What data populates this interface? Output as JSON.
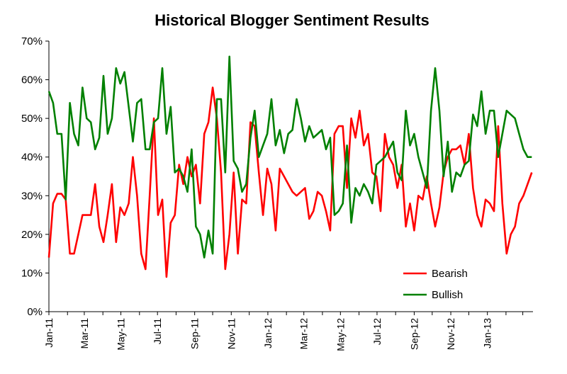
{
  "chart_data": {
    "type": "line",
    "title": "Historical Blogger Sentiment Results",
    "xlabel": "",
    "ylabel": "",
    "ylim": [
      0,
      70
    ],
    "y_ticks": [
      "0%",
      "10%",
      "20%",
      "30%",
      "40%",
      "50%",
      "60%",
      "70%"
    ],
    "x_tick_labels": [
      "Jan-11",
      "Mar-11",
      "May-11",
      "Jul-11",
      "Sep-11",
      "Nov-11",
      "Jan-12",
      "Mar-12",
      "May-12",
      "Jul-12",
      "Sep-12",
      "Nov-12",
      "Jan-13"
    ],
    "x_range": [
      "2011-01-01",
      "2013-03-18"
    ],
    "grid": false,
    "legend_position": "bottom-right",
    "series": [
      {
        "name": "Bearish",
        "color": "#ff0000",
        "points": [
          [
            "2011-01-01",
            14
          ],
          [
            "2011-01-08",
            28
          ],
          [
            "2011-01-15",
            30.5
          ],
          [
            "2011-01-22",
            30.5
          ],
          [
            "2011-01-29",
            29
          ],
          [
            "2011-02-05",
            15
          ],
          [
            "2011-02-12",
            15
          ],
          [
            "2011-02-19",
            20
          ],
          [
            "2011-02-26",
            25
          ],
          [
            "2011-03-05",
            25
          ],
          [
            "2011-03-12",
            25
          ],
          [
            "2011-03-19",
            33
          ],
          [
            "2011-03-26",
            22
          ],
          [
            "2011-04-02",
            18
          ],
          [
            "2011-04-09",
            25
          ],
          [
            "2011-04-16",
            33
          ],
          [
            "2011-04-23",
            18
          ],
          [
            "2011-04-30",
            27
          ],
          [
            "2011-05-07",
            25
          ],
          [
            "2011-05-14",
            28
          ],
          [
            "2011-05-21",
            40
          ],
          [
            "2011-05-28",
            30
          ],
          [
            "2011-06-04",
            15
          ],
          [
            "2011-06-11",
            11
          ],
          [
            "2011-06-18",
            30
          ],
          [
            "2011-06-25",
            50
          ],
          [
            "2011-07-02",
            25
          ],
          [
            "2011-07-09",
            29
          ],
          [
            "2011-07-16",
            9
          ],
          [
            "2011-07-23",
            23
          ],
          [
            "2011-07-30",
            25
          ],
          [
            "2011-08-06",
            38
          ],
          [
            "2011-08-13",
            33
          ],
          [
            "2011-08-20",
            40
          ],
          [
            "2011-08-27",
            35
          ],
          [
            "2011-09-03",
            38
          ],
          [
            "2011-09-10",
            28
          ],
          [
            "2011-09-17",
            46
          ],
          [
            "2011-09-24",
            49
          ],
          [
            "2011-10-01",
            58
          ],
          [
            "2011-10-08",
            50
          ],
          [
            "2011-10-15",
            36
          ],
          [
            "2011-10-22",
            11
          ],
          [
            "2011-10-29",
            20
          ],
          [
            "2011-11-05",
            36
          ],
          [
            "2011-11-12",
            15
          ],
          [
            "2011-11-19",
            29
          ],
          [
            "2011-11-26",
            28
          ],
          [
            "2011-12-03",
            49
          ],
          [
            "2011-12-10",
            48
          ],
          [
            "2011-12-17",
            36
          ],
          [
            "2011-12-24",
            25
          ],
          [
            "2011-12-31",
            37
          ],
          [
            "2012-01-07",
            33
          ],
          [
            "2012-01-14",
            21
          ],
          [
            "2012-01-21",
            37
          ],
          [
            "2012-01-28",
            35
          ],
          [
            "2012-02-04",
            33
          ],
          [
            "2012-02-11",
            31
          ],
          [
            "2012-02-18",
            30
          ],
          [
            "2012-02-25",
            31
          ],
          [
            "2012-03-03",
            32
          ],
          [
            "2012-03-10",
            24
          ],
          [
            "2012-03-17",
            26
          ],
          [
            "2012-03-24",
            31
          ],
          [
            "2012-03-31",
            30
          ],
          [
            "2012-04-07",
            26
          ],
          [
            "2012-04-14",
            21
          ],
          [
            "2012-04-21",
            46
          ],
          [
            "2012-04-28",
            48
          ],
          [
            "2012-05-05",
            48
          ],
          [
            "2012-05-12",
            32
          ],
          [
            "2012-05-19",
            50
          ],
          [
            "2012-05-26",
            45
          ],
          [
            "2012-06-02",
            52
          ],
          [
            "2012-06-09",
            43
          ],
          [
            "2012-06-16",
            46
          ],
          [
            "2012-06-23",
            36
          ],
          [
            "2012-06-30",
            35
          ],
          [
            "2012-07-07",
            26
          ],
          [
            "2012-07-14",
            46
          ],
          [
            "2012-07-21",
            40
          ],
          [
            "2012-07-28",
            38
          ],
          [
            "2012-08-04",
            32
          ],
          [
            "2012-08-11",
            38
          ],
          [
            "2012-08-18",
            22
          ],
          [
            "2012-08-25",
            28
          ],
          [
            "2012-09-01",
            21
          ],
          [
            "2012-09-08",
            30
          ],
          [
            "2012-09-15",
            29
          ],
          [
            "2012-09-22",
            35
          ],
          [
            "2012-09-29",
            28
          ],
          [
            "2012-10-06",
            22
          ],
          [
            "2012-10-13",
            27
          ],
          [
            "2012-10-20",
            36
          ],
          [
            "2012-10-27",
            40
          ],
          [
            "2012-11-03",
            42
          ],
          [
            "2012-11-10",
            42
          ],
          [
            "2012-11-17",
            43
          ],
          [
            "2012-11-24",
            38
          ],
          [
            "2012-12-01",
            46
          ],
          [
            "2012-12-08",
            32
          ],
          [
            "2012-12-15",
            25
          ],
          [
            "2012-12-22",
            22
          ],
          [
            "2012-12-29",
            29
          ],
          [
            "2013-01-05",
            28
          ],
          [
            "2013-01-12",
            26
          ],
          [
            "2013-01-19",
            48
          ],
          [
            "2013-01-26",
            28
          ],
          [
            "2013-02-02",
            15
          ],
          [
            "2013-02-09",
            20
          ],
          [
            "2013-02-16",
            22
          ],
          [
            "2013-02-23",
            28
          ],
          [
            "2013-03-02",
            30
          ],
          [
            "2013-03-09",
            33
          ],
          [
            "2013-03-16",
            36
          ]
        ]
      },
      {
        "name": "Bullish",
        "color": "#008000",
        "points": [
          [
            "2011-01-01",
            57
          ],
          [
            "2011-01-08",
            54
          ],
          [
            "2011-01-15",
            46
          ],
          [
            "2011-01-22",
            46
          ],
          [
            "2011-01-29",
            29
          ],
          [
            "2011-02-05",
            54
          ],
          [
            "2011-02-12",
            46
          ],
          [
            "2011-02-19",
            43
          ],
          [
            "2011-02-26",
            58
          ],
          [
            "2011-03-05",
            50
          ],
          [
            "2011-03-12",
            49
          ],
          [
            "2011-03-19",
            42
          ],
          [
            "2011-03-26",
            45
          ],
          [
            "2011-04-02",
            61
          ],
          [
            "2011-04-09",
            46
          ],
          [
            "2011-04-16",
            50
          ],
          [
            "2011-04-23",
            63
          ],
          [
            "2011-04-30",
            59
          ],
          [
            "2011-05-07",
            62
          ],
          [
            "2011-05-14",
            53
          ],
          [
            "2011-05-21",
            44
          ],
          [
            "2011-05-28",
            54
          ],
          [
            "2011-06-04",
            55
          ],
          [
            "2011-06-11",
            42
          ],
          [
            "2011-06-18",
            42
          ],
          [
            "2011-06-25",
            49
          ],
          [
            "2011-07-02",
            50
          ],
          [
            "2011-07-09",
            63
          ],
          [
            "2011-07-16",
            46
          ],
          [
            "2011-07-23",
            53
          ],
          [
            "2011-07-30",
            36
          ],
          [
            "2011-08-06",
            37
          ],
          [
            "2011-08-13",
            35
          ],
          [
            "2011-08-20",
            31
          ],
          [
            "2011-08-27",
            42
          ],
          [
            "2011-09-03",
            22
          ],
          [
            "2011-09-10",
            20
          ],
          [
            "2011-09-17",
            14
          ],
          [
            "2011-09-24",
            21
          ],
          [
            "2011-10-01",
            15
          ],
          [
            "2011-10-08",
            55
          ],
          [
            "2011-10-15",
            55
          ],
          [
            "2011-10-22",
            36
          ],
          [
            "2011-10-29",
            66
          ],
          [
            "2011-11-05",
            39
          ],
          [
            "2011-11-12",
            37
          ],
          [
            "2011-11-19",
            31
          ],
          [
            "2011-11-26",
            33
          ],
          [
            "2011-12-03",
            45
          ],
          [
            "2011-12-10",
            52
          ],
          [
            "2011-12-17",
            40
          ],
          [
            "2011-12-24",
            43
          ],
          [
            "2011-12-31",
            46
          ],
          [
            "2012-01-07",
            55
          ],
          [
            "2012-01-14",
            43
          ],
          [
            "2012-01-21",
            47
          ],
          [
            "2012-01-28",
            41
          ],
          [
            "2012-02-04",
            46
          ],
          [
            "2012-02-11",
            47
          ],
          [
            "2012-02-18",
            55
          ],
          [
            "2012-02-25",
            50
          ],
          [
            "2012-03-03",
            44
          ],
          [
            "2012-03-10",
            48
          ],
          [
            "2012-03-17",
            45
          ],
          [
            "2012-03-24",
            46
          ],
          [
            "2012-03-31",
            47
          ],
          [
            "2012-04-07",
            42
          ],
          [
            "2012-04-14",
            45
          ],
          [
            "2012-04-21",
            25
          ],
          [
            "2012-04-28",
            26
          ],
          [
            "2012-05-05",
            28
          ],
          [
            "2012-05-12",
            43
          ],
          [
            "2012-05-19",
            23
          ],
          [
            "2012-05-26",
            32
          ],
          [
            "2012-06-02",
            30
          ],
          [
            "2012-06-09",
            33
          ],
          [
            "2012-06-16",
            31
          ],
          [
            "2012-06-23",
            28
          ],
          [
            "2012-06-30",
            38
          ],
          [
            "2012-07-07",
            39
          ],
          [
            "2012-07-14",
            40
          ],
          [
            "2012-07-21",
            42
          ],
          [
            "2012-07-28",
            44
          ],
          [
            "2012-08-04",
            36
          ],
          [
            "2012-08-11",
            34
          ],
          [
            "2012-08-18",
            52
          ],
          [
            "2012-08-25",
            43
          ],
          [
            "2012-09-01",
            46
          ],
          [
            "2012-09-08",
            40
          ],
          [
            "2012-09-15",
            36
          ],
          [
            "2012-09-22",
            32
          ],
          [
            "2012-09-29",
            52
          ],
          [
            "2012-10-06",
            63
          ],
          [
            "2012-10-13",
            52
          ],
          [
            "2012-10-20",
            35
          ],
          [
            "2012-10-27",
            44
          ],
          [
            "2012-11-03",
            31
          ],
          [
            "2012-11-10",
            36
          ],
          [
            "2012-11-17",
            35
          ],
          [
            "2012-11-24",
            38
          ],
          [
            "2012-12-01",
            39
          ],
          [
            "2012-12-08",
            51
          ],
          [
            "2012-12-15",
            48
          ],
          [
            "2012-12-22",
            57
          ],
          [
            "2012-12-29",
            46
          ],
          [
            "2013-01-05",
            52
          ],
          [
            "2013-01-12",
            52
          ],
          [
            "2013-01-19",
            40
          ],
          [
            "2013-01-26",
            46
          ],
          [
            "2013-02-02",
            52
          ],
          [
            "2013-02-09",
            51
          ],
          [
            "2013-02-16",
            50
          ],
          [
            "2013-02-23",
            46
          ],
          [
            "2013-03-02",
            42
          ],
          [
            "2013-03-09",
            40
          ],
          [
            "2013-03-16",
            40
          ]
        ]
      }
    ]
  }
}
